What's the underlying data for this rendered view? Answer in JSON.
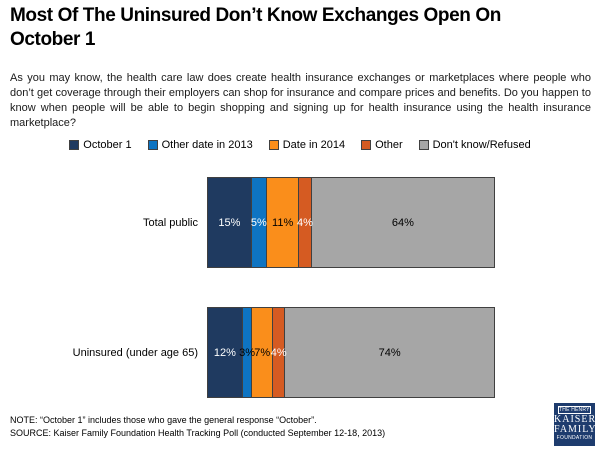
{
  "slide": {
    "title": "Most Of The Uninsured Don’t Know Exchanges Open On October 1",
    "intro": "As you may know, the health care law does create health insurance exchanges or marketplaces where people who don’t get coverage through their employers can shop for insurance and compare prices and benefits. Do you happen to know when people will be able to begin shopping and signing up for health insurance using the health insurance marketplace?",
    "note": "NOTE: “October 1” includes those who gave the general response “October”.",
    "source": "SOURCE: Kaiser Family Foundation Health Tracking Poll (conducted September 12-18, 2013)"
  },
  "chart_data": {
    "type": "bar",
    "orientation": "horizontal_stacked",
    "title": "Most Of The Uninsured Don’t Know Exchanges Open On October 1",
    "categories": [
      "Total public",
      "Uninsured (under age 65)"
    ],
    "series": [
      {
        "name": "October 1",
        "color": "#1F3A60",
        "values": [
          15,
          12
        ]
      },
      {
        "name": "Other date in 2013",
        "color": "#0E74C2",
        "values": [
          5,
          3
        ]
      },
      {
        "name": "Date in 2014",
        "color": "#FA8E1B",
        "values": [
          11,
          7
        ]
      },
      {
        "name": "Other",
        "color": "#D55B22",
        "values": [
          4,
          4
        ]
      },
      {
        "name": "Don't know/Refused",
        "color": "#A6A6A6",
        "values": [
          64,
          74
        ]
      }
    ],
    "value_suffix": "%",
    "value_label_colors": [
      [
        "#FFFFFF",
        "#FFFFFF",
        "#000000",
        "#FFFFFF",
        "#000000"
      ],
      [
        "#FFFFFF",
        "#000000",
        "#000000",
        "#FFFFFF",
        "#000000"
      ]
    ],
    "xlim": [
      0,
      100
    ],
    "legend_position": "top",
    "grid": false
  },
  "logo": {
    "lines": [
      "THE HENRY J.",
      "KAISER",
      "FAMILY",
      "FOUNDATION"
    ],
    "color": "#1E3C6E"
  }
}
